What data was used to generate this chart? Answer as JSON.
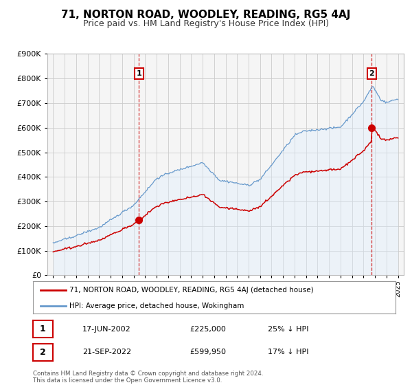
{
  "title": "71, NORTON ROAD, WOODLEY, READING, RG5 4AJ",
  "subtitle": "Price paid vs. HM Land Registry's House Price Index (HPI)",
  "legend_line1": "71, NORTON ROAD, WOODLEY, READING, RG5 4AJ (detached house)",
  "legend_line2": "HPI: Average price, detached house, Wokingham",
  "footnote1": "Contains HM Land Registry data © Crown copyright and database right 2024.",
  "footnote2": "This data is licensed under the Open Government Licence v3.0.",
  "sale1_label": "1",
  "sale1_date": "17-JUN-2002",
  "sale1_price": "£225,000",
  "sale1_hpi": "25% ↓ HPI",
  "sale1_year": 2002.46,
  "sale1_value": 225000,
  "sale2_label": "2",
  "sale2_date": "21-SEP-2022",
  "sale2_price": "£599,950",
  "sale2_hpi": "17% ↓ HPI",
  "sale2_year": 2022.72,
  "sale2_value": 599950,
  "price_color": "#cc0000",
  "hpi_color": "#6699cc",
  "hpi_fill_color": "#ddeeff",
  "ylim_min": 0,
  "ylim_max": 900000,
  "xlim_min": 1994.5,
  "xlim_max": 2025.5,
  "plot_bg_color": "#f5f5f5",
  "grid_color": "#cccccc",
  "title_fontsize": 11,
  "subtitle_fontsize": 9
}
